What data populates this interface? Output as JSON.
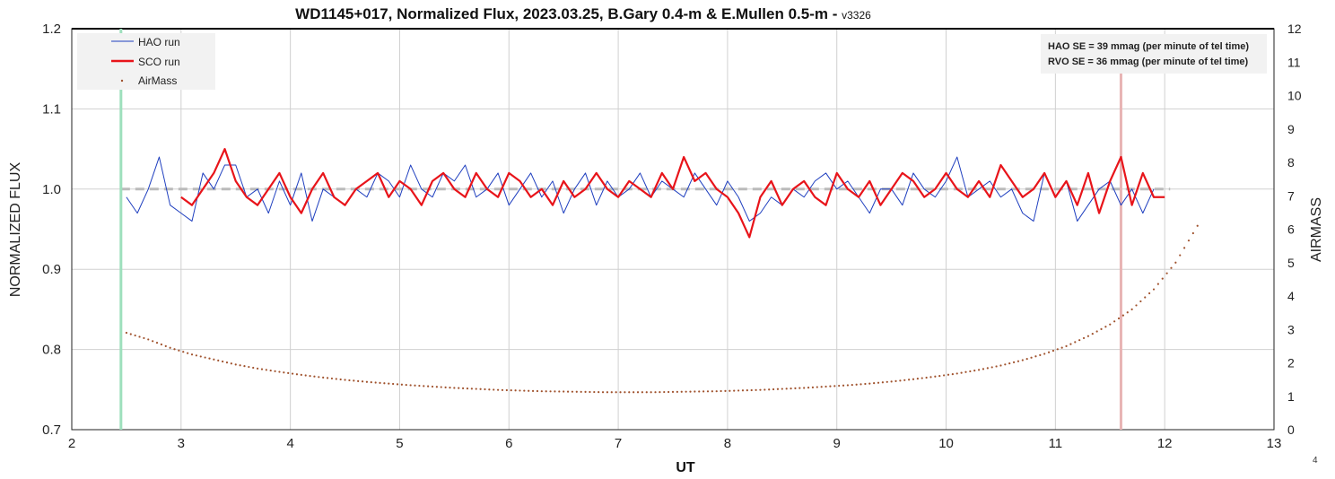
{
  "chart_data": {
    "type": "line",
    "title": "WD1145+017, Normalized Flux, 2023.03.25, B.Gary 0.4-m & E.Mullen 0.5-m - ",
    "title_version": "v3326",
    "xlabel": "UT",
    "ylabel": "NORMALIZED FLUX",
    "y2label": "AIRMASS",
    "xlim": [
      2,
      13
    ],
    "ylim": [
      0.7,
      1.2
    ],
    "y2lim": [
      0,
      12
    ],
    "xticks": [
      "2",
      "3",
      "4",
      "5",
      "6",
      "7",
      "8",
      "9",
      "10",
      "11",
      "12",
      "13"
    ],
    "yticks": [
      "0.7",
      "0.8",
      "0.9",
      "1.0",
      "1.1",
      "1.2"
    ],
    "y2ticks": [
      "0",
      "1",
      "2",
      "3",
      "4",
      "5",
      "6",
      "7",
      "8",
      "9",
      "10",
      "11",
      "12"
    ],
    "grid": true,
    "legend_position": "top-left",
    "legend": [
      "HAO run",
      "SCO run",
      "AirMass"
    ],
    "annotation": [
      "HAO SE = 39 mmag (per minute of tel time)",
      "RVO SE = 36 mmag (per minute of tel time)"
    ],
    "reference_line_y": 1.0,
    "vertical_markers": [
      2.45,
      11.6
    ],
    "series": [
      {
        "name": "HAO run",
        "color": "#1f3fbf",
        "x_start": 2.5,
        "x_step": 0.1,
        "values": [
          0.99,
          0.97,
          1.0,
          1.04,
          0.98,
          0.97,
          0.96,
          1.02,
          1.0,
          1.03,
          1.03,
          0.99,
          1.0,
          0.97,
          1.01,
          0.98,
          1.02,
          0.96,
          1.0,
          0.99,
          0.98,
          1.0,
          0.99,
          1.02,
          1.01,
          0.99,
          1.03,
          1.0,
          0.99,
          1.02,
          1.01,
          1.03,
          0.99,
          1.0,
          1.02,
          0.98,
          1.0,
          1.02,
          0.99,
          1.01,
          0.97,
          1.0,
          1.02,
          0.98,
          1.01,
          0.99,
          1.0,
          1.02,
          0.99,
          1.01,
          1.0,
          0.99,
          1.02,
          1.0,
          0.98,
          1.01,
          0.99,
          0.96,
          0.97,
          0.99,
          0.98,
          1.0,
          0.99,
          1.01,
          1.02,
          1.0,
          1.01,
          0.99,
          0.97,
          1.0,
          1.0,
          0.98,
          1.02,
          1.0,
          0.99,
          1.01,
          1.04,
          0.99,
          1.0,
          1.01,
          0.99,
          1.0,
          0.97,
          0.96,
          1.02,
          0.99,
          1.01,
          0.96,
          0.98,
          1.0,
          1.01,
          0.98,
          1.0,
          0.97,
          1.0
        ]
      },
      {
        "name": "SCO run",
        "color": "#e8141a",
        "x_start": 3.0,
        "x_step": 0.1,
        "values": [
          0.99,
          0.98,
          1.0,
          1.02,
          1.05,
          1.01,
          0.99,
          0.98,
          1.0,
          1.02,
          0.99,
          0.97,
          1.0,
          1.02,
          0.99,
          0.98,
          1.0,
          1.01,
          1.02,
          0.99,
          1.01,
          1.0,
          0.98,
          1.01,
          1.02,
          1.0,
          0.99,
          1.02,
          1.0,
          0.99,
          1.02,
          1.01,
          0.99,
          1.0,
          0.98,
          1.01,
          0.99,
          1.0,
          1.02,
          1.0,
          0.99,
          1.01,
          1.0,
          0.99,
          1.02,
          1.0,
          1.04,
          1.01,
          1.02,
          1.0,
          0.99,
          0.97,
          0.94,
          0.99,
          1.01,
          0.98,
          1.0,
          1.01,
          0.99,
          0.98,
          1.02,
          1.0,
          0.99,
          1.01,
          0.98,
          1.0,
          1.02,
          1.01,
          0.99,
          1.0,
          1.02,
          1.0,
          0.99,
          1.01,
          0.99,
          1.03,
          1.01,
          0.99,
          1.0,
          1.02,
          0.99,
          1.01,
          0.98,
          1.02,
          0.97,
          1.01,
          1.04,
          0.98,
          1.02,
          0.99,
          0.99
        ]
      },
      {
        "name": "AirMass",
        "color": "#a0522d",
        "axis": "right",
        "x_start": 2.5,
        "x_step": 0.2,
        "values": [
          2.9,
          2.7,
          2.45,
          2.25,
          2.1,
          1.95,
          1.83,
          1.73,
          1.64,
          1.56,
          1.49,
          1.43,
          1.38,
          1.33,
          1.29,
          1.25,
          1.22,
          1.19,
          1.17,
          1.15,
          1.14,
          1.13,
          1.12,
          1.12,
          1.12,
          1.13,
          1.14,
          1.15,
          1.17,
          1.19,
          1.22,
          1.25,
          1.29,
          1.33,
          1.38,
          1.44,
          1.51,
          1.59,
          1.68,
          1.79,
          1.92,
          2.08,
          2.27,
          2.5,
          2.8,
          3.15,
          3.6,
          4.2,
          5.0,
          6.1
        ]
      }
    ]
  },
  "page_number": "4"
}
